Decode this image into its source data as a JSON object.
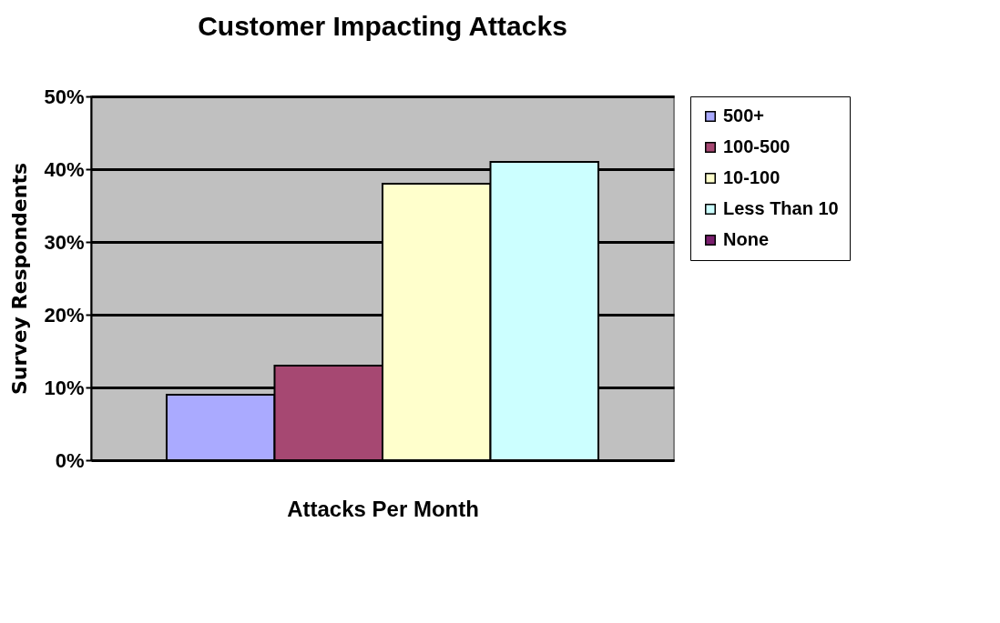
{
  "chart_data": {
    "type": "bar",
    "title": "Customer Impacting Attacks",
    "xlabel": "Attacks Per Month",
    "ylabel": "Survey Respondents",
    "categories": [
      null
    ],
    "series": [
      {
        "name": "500+",
        "color": "#aaaaff",
        "values": [
          9
        ]
      },
      {
        "name": "100-500",
        "color": "#a64872",
        "values": [
          13
        ]
      },
      {
        "name": "10-100",
        "color": "#ffffcc",
        "values": [
          38
        ]
      },
      {
        "name": "Less Than 10",
        "color": "#ccffff",
        "values": [
          41
        ]
      },
      {
        "name": "None",
        "color": "#7a1f6e",
        "values": [
          null
        ]
      }
    ],
    "ylim": [
      0,
      50
    ],
    "yticks": [
      {
        "value": 0,
        "label": "0%"
      },
      {
        "value": 10,
        "label": "10%"
      },
      {
        "value": 20,
        "label": "20%"
      },
      {
        "value": 30,
        "label": "30%"
      },
      {
        "value": 40,
        "label": "40%"
      },
      {
        "value": 50,
        "label": "50%"
      }
    ],
    "grid": "y",
    "legend": "right"
  }
}
